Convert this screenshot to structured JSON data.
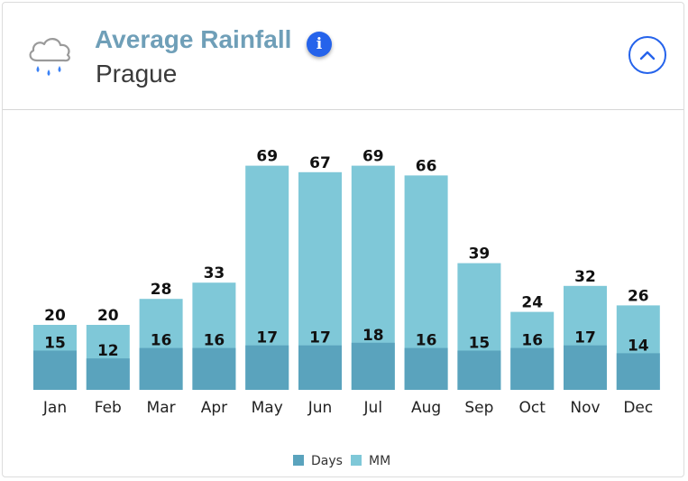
{
  "header": {
    "title": "Average Rainfall",
    "subtitle": "Prague",
    "info_icon": "info-icon",
    "info_glyph": "i",
    "collapse_icon": "chevron-up-icon",
    "weather_icon": "rain-cloud-icon"
  },
  "colors": {
    "days": "#5aa3bd",
    "mm": "#7fc8d8",
    "accent": "#2563eb",
    "title": "#6f9fb8"
  },
  "chart_data": {
    "type": "bar",
    "stacked": false,
    "overlapping": true,
    "title": "Average Rainfall",
    "subtitle": "Prague",
    "categories": [
      "Jan",
      "Feb",
      "Mar",
      "Apr",
      "May",
      "Jun",
      "Jul",
      "Aug",
      "Sep",
      "Oct",
      "Nov",
      "Dec"
    ],
    "series": [
      {
        "name": "Days",
        "values": [
          15,
          12,
          16,
          16,
          17,
          17,
          18,
          16,
          15,
          16,
          17,
          14
        ]
      },
      {
        "name": "MM",
        "values": [
          20,
          20,
          28,
          33,
          69,
          67,
          69,
          66,
          39,
          24,
          32,
          26
        ]
      }
    ],
    "xlabel": "",
    "ylabel": "",
    "ylim": [
      0,
      69
    ],
    "grid": false,
    "legend": "bottom-center"
  }
}
